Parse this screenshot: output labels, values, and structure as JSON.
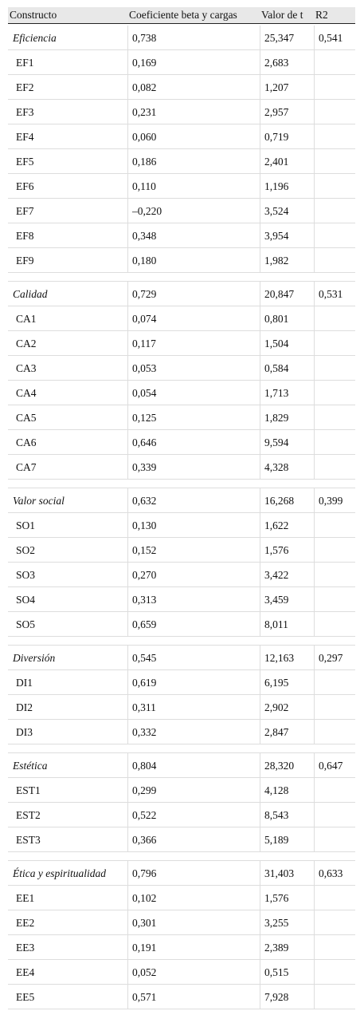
{
  "table": {
    "header": [
      "Constructo",
      "Coeficiente beta y cargas",
      "Valor de t",
      "R2"
    ],
    "groups": [
      {
        "construct": "Eficiencia",
        "beta": "0,738",
        "t": "25,347",
        "r2": "0,541",
        "items": [
          [
            "EF1",
            "0,169",
            "2,683"
          ],
          [
            "EF2",
            "0,082",
            "1,207"
          ],
          [
            "EF3",
            "0,231",
            "2,957"
          ],
          [
            "EF4",
            "0,060",
            "0,719"
          ],
          [
            "EF5",
            "0,186",
            "2,401"
          ],
          [
            "EF6",
            "0,110",
            "1,196"
          ],
          [
            "EF7",
            "–0,220",
            "3,524"
          ],
          [
            "EF8",
            "0,348",
            "3,954"
          ],
          [
            "EF9",
            "0,180",
            "1,982"
          ]
        ]
      },
      {
        "construct": "Calidad",
        "beta": "0,729",
        "t": "20,847",
        "r2": "0,531",
        "items": [
          [
            "CA1",
            "0,074",
            "0,801"
          ],
          [
            "CA2",
            "0,117",
            "1,504"
          ],
          [
            "CA3",
            "0,053",
            "0,584"
          ],
          [
            "CA4",
            "0,054",
            "1,713"
          ],
          [
            "CA5",
            "0,125",
            "1,829"
          ],
          [
            "CA6",
            "0,646",
            "9,594"
          ],
          [
            "CA7",
            "0,339",
            "4,328"
          ]
        ]
      },
      {
        "construct": "Valor social",
        "beta": "0,632",
        "t": "16,268",
        "r2": "0,399",
        "items": [
          [
            "SO1",
            "0,130",
            "1,622"
          ],
          [
            "SO2",
            "0,152",
            "1,576"
          ],
          [
            "SO3",
            "0,270",
            "3,422"
          ],
          [
            "SO4",
            "0,313",
            "3,459"
          ],
          [
            "SO5",
            "0,659",
            "8,011"
          ]
        ]
      },
      {
        "construct": "Diversión",
        "beta": "0,545",
        "t": "12,163",
        "r2": "0,297",
        "items": [
          [
            "DI1",
            "0,619",
            "6,195"
          ],
          [
            "DI2",
            "0,311",
            "2,902"
          ],
          [
            "DI3",
            "0,332",
            "2,847"
          ]
        ]
      },
      {
        "construct": "Estética",
        "beta": "0,804",
        "t": "28,320",
        "r2": "0,647",
        "items": [
          [
            "EST1",
            "0,299",
            "4,128"
          ],
          [
            "EST2",
            "0,522",
            "8,543"
          ],
          [
            "EST3",
            "0,366",
            "5,189"
          ]
        ]
      },
      {
        "construct": "Ética y espiritualidad",
        "beta": "0,796",
        "t": "31,403",
        "r2": "0,633",
        "items": [
          [
            "EE1",
            "0,102",
            "1,576"
          ],
          [
            "EE2",
            "0,301",
            "3,255"
          ],
          [
            "EE3",
            "0,191",
            "2,389"
          ],
          [
            "EE4",
            "0,052",
            "0,515"
          ],
          [
            "EE5",
            "0,571",
            "7,928"
          ]
        ]
      }
    ]
  }
}
